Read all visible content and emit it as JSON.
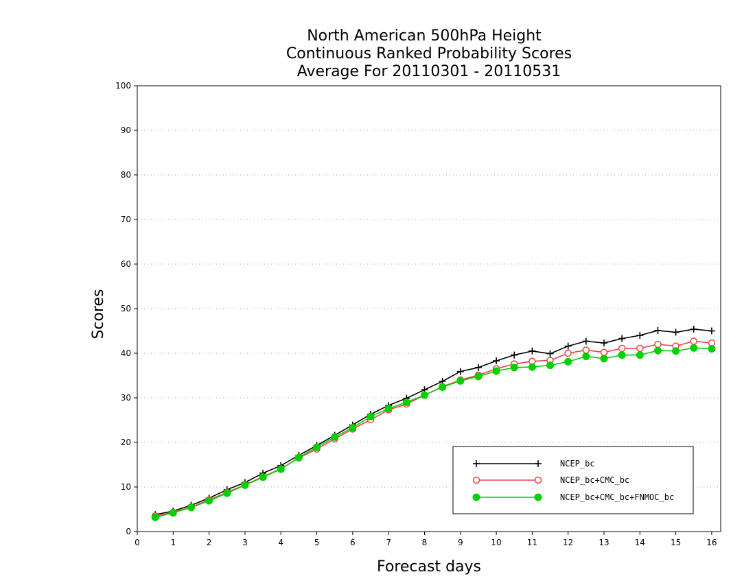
{
  "chart_data": {
    "type": "line",
    "title_lines": [
      "North American 500hPa Height",
      "Continuous Ranked Probability Scores",
      "Average For 20110301 - 20110531"
    ],
    "xlabel": "Forecast days",
    "ylabel": "Scores",
    "xlim": [
      0,
      16.25
    ],
    "ylim": [
      0,
      100
    ],
    "xticks": [
      0,
      1,
      2,
      3,
      4,
      5,
      6,
      7,
      8,
      9,
      10,
      11,
      12,
      13,
      14,
      15,
      16
    ],
    "yticks": [
      0,
      10,
      20,
      30,
      40,
      50,
      60,
      70,
      80,
      90,
      100
    ],
    "grid": "horizontal-dotted",
    "legend_position": "bottom-right",
    "x": [
      0.5,
      1,
      1.5,
      2,
      2.5,
      3,
      3.5,
      4,
      4.5,
      5,
      5.5,
      6,
      6.5,
      7,
      7.5,
      8,
      8.5,
      9,
      9.5,
      10,
      10.5,
      11,
      11.5,
      12,
      12.5,
      13,
      13.5,
      14,
      14.5,
      15,
      15.5,
      16
    ],
    "series": [
      {
        "name": "NCEP_bc",
        "color": "#000000",
        "marker": "plus",
        "values": [
          3.8,
          4.6,
          5.9,
          7.5,
          9.4,
          11.0,
          13.1,
          14.8,
          17.1,
          19.3,
          21.6,
          23.9,
          26.3,
          28.3,
          29.9,
          31.8,
          33.7,
          35.9,
          36.8,
          38.3,
          39.6,
          40.5,
          39.9,
          41.6,
          42.7,
          42.3,
          43.3,
          44.0,
          45.1,
          44.7,
          45.4,
          45.0
        ]
      },
      {
        "name": "NCEP_bc+CMC_bc",
        "color": "#f04040",
        "marker": "open-circle",
        "values": [
          3.5,
          4.3,
          5.5,
          7.1,
          8.8,
          10.5,
          12.3,
          14.1,
          16.5,
          18.5,
          20.8,
          23.0,
          25.1,
          27.3,
          28.6,
          30.6,
          32.5,
          34.0,
          35.1,
          36.5,
          37.6,
          38.2,
          38.4,
          40.0,
          40.7,
          40.2,
          41.1,
          41.1,
          42.0,
          41.6,
          42.7,
          42.3
        ]
      },
      {
        "name": "NCEP_bc+CMC_bc+FNMOC_bc",
        "color": "#00d000",
        "marker": "filled-circle",
        "values": [
          3.2,
          4.2,
          5.4,
          6.9,
          8.6,
          10.4,
          12.2,
          14.0,
          16.6,
          18.9,
          21.2,
          23.3,
          25.8,
          27.6,
          29.0,
          30.6,
          32.4,
          33.8,
          34.8,
          36.0,
          36.8,
          36.9,
          37.3,
          38.1,
          39.3,
          38.8,
          39.6,
          39.6,
          40.6,
          40.5,
          41.2,
          41.0
        ]
      }
    ]
  }
}
